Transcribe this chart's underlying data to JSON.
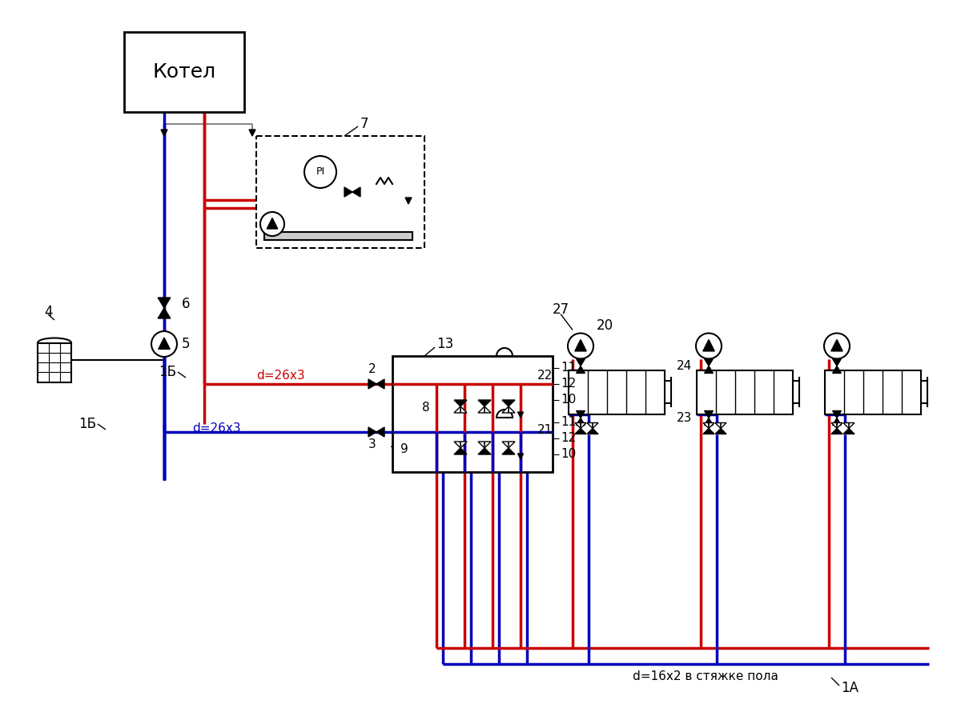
{
  "background_color": "#ffffff",
  "RED": "#cc0000",
  "BLUE": "#0000bb",
  "BLACK": "#000000",
  "GRAY": "#888888",
  "boiler_label": "Котел",
  "label_1A": "1А",
  "label_1B": "1Б",
  "label_2": "2",
  "label_3": "3",
  "label_4": "4",
  "label_5": "5",
  "label_6": "6",
  "label_7": "7",
  "label_8": "8",
  "label_9": "9",
  "label_10": "10",
  "label_11": "11",
  "label_12": "12",
  "label_13": "13",
  "label_20": "20",
  "label_21": "21",
  "label_22": "22",
  "label_23": "23",
  "label_24": "24",
  "label_27": "27",
  "label_d26x3": "d=26x3",
  "label_d16x2": "d=16x2 в стяжке пола",
  "label_PI": "PI"
}
